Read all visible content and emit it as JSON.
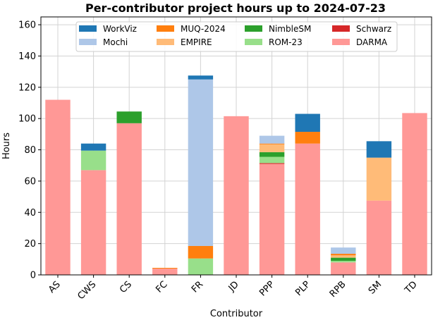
{
  "chart_data": {
    "type": "bar",
    "stacked": true,
    "title": "Per-contributor project hours up to 2024-07-23",
    "xlabel": "Contributor",
    "ylabel": "Hours",
    "ylim": [
      0,
      165
    ],
    "yticks": [
      0,
      20,
      40,
      60,
      80,
      100,
      120,
      140,
      160
    ],
    "grid": true,
    "legend_position": "top-center",
    "legend_columns": 4,
    "categories": [
      "AS",
      "CWS",
      "CS",
      "FC",
      "FR",
      "JD",
      "PPP",
      "PLP",
      "RPB",
      "SM",
      "TD"
    ],
    "series": [
      {
        "name": "DARMA",
        "color": "#ff9896",
        "values": [
          112,
          67,
          97,
          4,
          0,
          101.5,
          71,
          84,
          8,
          47.5,
          103.5
        ]
      },
      {
        "name": "Schwarz",
        "color": "#d62728",
        "values": [
          0,
          0,
          0,
          0,
          0,
          0,
          0.5,
          0,
          0,
          0,
          0
        ]
      },
      {
        "name": "ROM-23",
        "color": "#98df8a",
        "values": [
          0,
          12.5,
          0,
          0,
          10.5,
          0,
          4,
          0,
          1,
          0,
          0
        ]
      },
      {
        "name": "NimbleSM",
        "color": "#2ca02c",
        "values": [
          0,
          0,
          7.5,
          0,
          0,
          0,
          3,
          0,
          2,
          0,
          0
        ]
      },
      {
        "name": "EMPIRE",
        "color": "#ffbb78",
        "values": [
          0,
          0,
          0,
          0,
          0,
          0,
          5,
          0,
          1.5,
          27.5,
          0
        ]
      },
      {
        "name": "MUQ-2024",
        "color": "#ff7f0e",
        "values": [
          0,
          0,
          0,
          0.5,
          8,
          0,
          0.5,
          7.5,
          1,
          0,
          0
        ]
      },
      {
        "name": "Mochi",
        "color": "#aec7e8",
        "values": [
          0,
          0,
          0,
          0,
          106.5,
          0,
          5,
          0,
          4,
          0,
          0
        ]
      },
      {
        "name": "WorkViz",
        "color": "#1f77b4",
        "values": [
          0,
          4.5,
          0,
          0,
          2.5,
          0,
          0,
          11.5,
          0,
          10.5,
          0
        ]
      }
    ],
    "legend_order": [
      "WorkViz",
      "MUQ-2024",
      "NimbleSM",
      "Schwarz",
      "Mochi",
      "EMPIRE",
      "ROM-23",
      "DARMA"
    ]
  }
}
